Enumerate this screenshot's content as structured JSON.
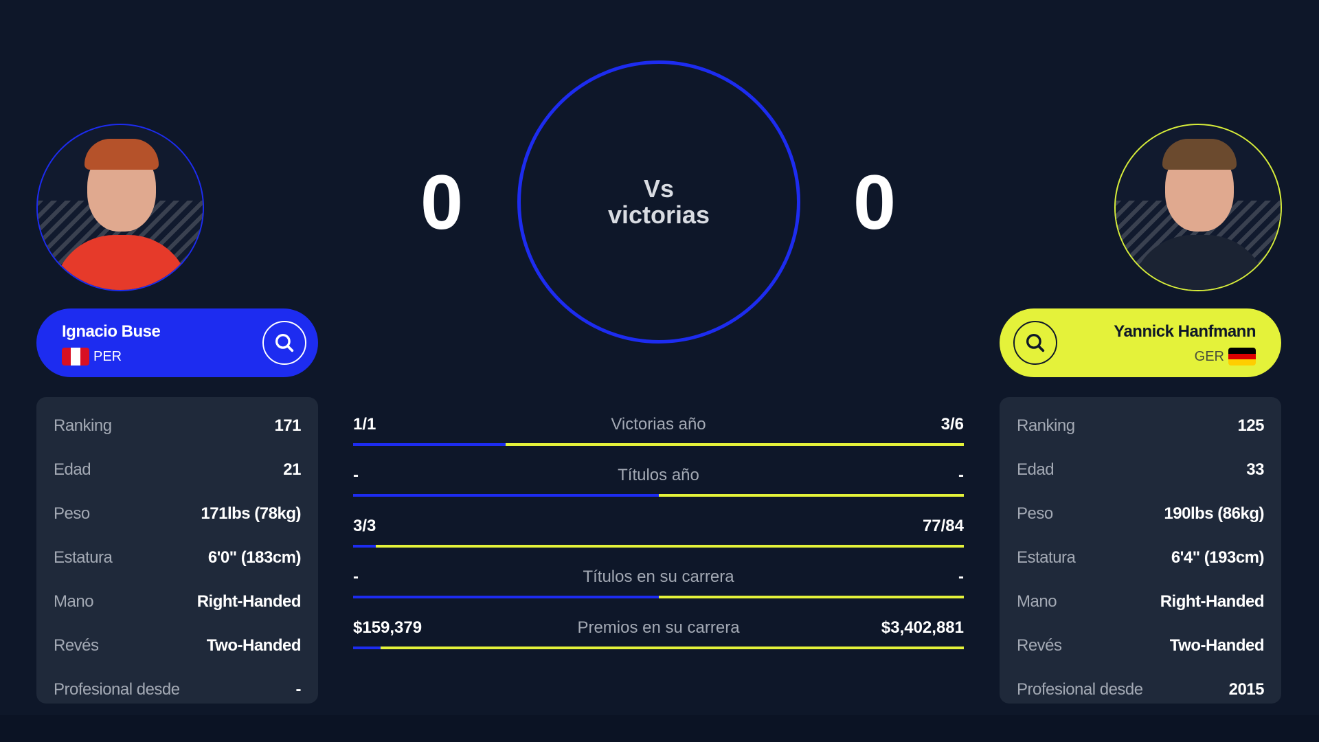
{
  "center": {
    "vs_line1": "Vs",
    "vs_line2": "victorias",
    "score_left": "0",
    "score_right": "0"
  },
  "colors": {
    "player1": "#1d2cf0",
    "player2": "#e4f23a",
    "background": "#0e1729"
  },
  "player1": {
    "name": "Ignacio Buse",
    "country": "PER",
    "stats": [
      {
        "label": "Ranking",
        "value": "171"
      },
      {
        "label": "Edad",
        "value": "21"
      },
      {
        "label": "Peso",
        "value": "171lbs (78kg)"
      },
      {
        "label": "Estatura",
        "value": "6'0\" (183cm)"
      },
      {
        "label": "Mano",
        "value": "Right-Handed"
      },
      {
        "label": "Revés",
        "value": "Two-Handed"
      },
      {
        "label": "Profesional desde",
        "value": "-"
      }
    ]
  },
  "player2": {
    "name": "Yannick Hanfmann",
    "country": "GER",
    "stats": [
      {
        "label": "Ranking",
        "value": "125"
      },
      {
        "label": "Edad",
        "value": "33"
      },
      {
        "label": "Peso",
        "value": "190lbs (86kg)"
      },
      {
        "label": "Estatura",
        "value": "6'4\" (193cm)"
      },
      {
        "label": "Mano",
        "value": "Right-Handed"
      },
      {
        "label": "Revés",
        "value": "Two-Handed"
      },
      {
        "label": "Profesional desde",
        "value": "2015"
      }
    ]
  },
  "comparison": [
    {
      "label": "Victorias año",
      "left": "1/1",
      "right": "3/6",
      "left_share_pct": 25
    },
    {
      "label": "Títulos año",
      "left": "-",
      "right": "-",
      "left_share_pct": 50
    },
    {
      "label": "",
      "left": "3/3",
      "right": "77/84",
      "left_share_pct": 3.7
    },
    {
      "label": "Títulos en su carrera",
      "left": "-",
      "right": "-",
      "left_share_pct": 50
    },
    {
      "label": "Premios en su carrera",
      "left": "$159,379",
      "right": "$3,402,881",
      "left_share_pct": 4.5
    }
  ]
}
